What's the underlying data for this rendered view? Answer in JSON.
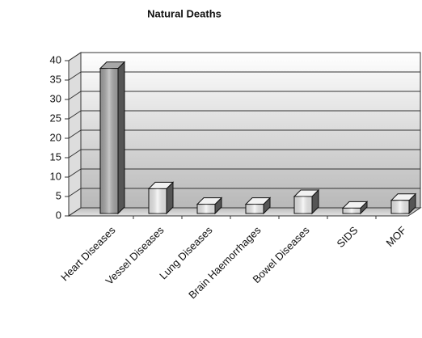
{
  "chart_data": {
    "type": "bar3d",
    "title": "Natural Deaths",
    "categories": [
      "Heart Diseases",
      "Vessel Diseases",
      "Lung Diseases",
      "Brain Haemorrhages",
      "Bowel Diseases",
      "SIDS",
      "MOF"
    ],
    "values": [
      38,
      7,
      3,
      3,
      5,
      2,
      4
    ],
    "colors": [
      "#a8a8a8",
      "#f2f2f2",
      "#f2f2f2",
      "#f2f2f2",
      "#f2f2f2",
      "#f2f2f2",
      "#f2f2f2"
    ],
    "ylim": [
      0,
      40
    ],
    "yticks": [
      0,
      5,
      10,
      15,
      20,
      25,
      30,
      35,
      40
    ],
    "grid": true
  }
}
